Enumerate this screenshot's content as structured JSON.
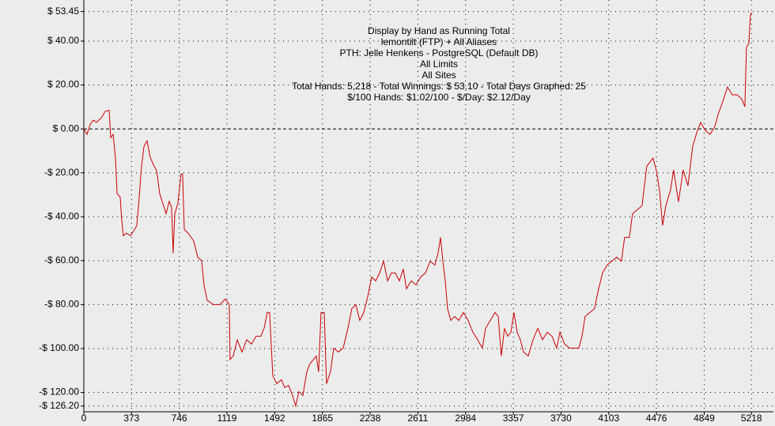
{
  "chart_data": {
    "type": "line",
    "title": "Display by Hand as Running Total",
    "annotations": [
      "lemontilt (FTP) + All Aliases",
      "PTH: Jelle Henkens - PostgreSQL (Default DB)",
      "All Limits",
      "All Sites",
      "Total Hands: 5,218 - Total Winnings: $ 53.10 - Total Days Graphed: 25",
      "$/100 Hands: $1.02/100 - $/Day: $2.12/Day"
    ],
    "xlim": [
      0,
      5390
    ],
    "ylim": [
      -128.8,
      58.7
    ],
    "xticks": [
      0,
      373,
      746,
      1119,
      1492,
      1865,
      2238,
      2611,
      2984,
      3357,
      3730,
      4103,
      4476,
      4849,
      5218
    ],
    "yticks": [
      {
        "value": 53.45,
        "label": "$ 53.45"
      },
      {
        "value": 40,
        "label": "$ 40.00"
      },
      {
        "value": 20,
        "label": "$ 20.00"
      },
      {
        "value": 0,
        "label": "$ 0.00"
      },
      {
        "value": -20,
        "label": "-$ 20.00"
      },
      {
        "value": -40,
        "label": "-$ 40.00"
      },
      {
        "value": -60,
        "label": "-$ 60.00"
      },
      {
        "value": -80,
        "label": "-$ 80.00"
      },
      {
        "value": -100,
        "label": "-$ 100.00"
      },
      {
        "value": -120,
        "label": "-$ 120.00"
      },
      {
        "value": -126.2,
        "label": "-$ 126.20"
      }
    ],
    "grid": true,
    "series": [
      {
        "color": "#cc0000",
        "x": [
          0,
          25,
          49,
          74,
          99,
          136,
          167,
          198,
          210,
          229,
          247,
          260,
          284,
          297,
          309,
          334,
          365,
          396,
          414,
          433,
          451,
          470,
          494,
          519,
          550,
          569,
          593,
          618,
          643,
          667,
          686,
          698,
          711,
          735,
          760,
          772,
          785,
          816,
          859,
          890,
          921,
          939,
          964,
          1014,
          1063,
          1106,
          1137,
          1143,
          1168,
          1199,
          1236,
          1273,
          1310,
          1347,
          1384,
          1409,
          1434,
          1452,
          1477,
          1508,
          1545,
          1570,
          1600,
          1631,
          1656,
          1681,
          1712,
          1743,
          1767,
          1792,
          1817,
          1835,
          1854,
          1879,
          1897,
          1928,
          1953,
          1990,
          2027,
          2064,
          2095,
          2126,
          2157,
          2188,
          2219,
          2250,
          2281,
          2312,
          2343,
          2374,
          2404,
          2435,
          2466,
          2497,
          2522,
          2559,
          2596,
          2633,
          2670,
          2707,
          2744,
          2769,
          2788,
          2806,
          2825,
          2843,
          2868,
          2899,
          2930,
          2967,
          3004,
          3041,
          3078,
          3115,
          3140,
          3177,
          3214,
          3239,
          3263,
          3288,
          3313,
          3338,
          3362,
          3387,
          3412,
          3437,
          3474,
          3511,
          3548,
          3585,
          3622,
          3659,
          3696,
          3721,
          3758,
          3795,
          3832,
          3869,
          3894,
          3918,
          3955,
          3992,
          4017,
          4054,
          4091,
          4128,
          4165,
          4202,
          4227,
          4264,
          4289,
          4326,
          4363,
          4400,
          4425,
          4449,
          4474,
          4499,
          4524,
          4549,
          4586,
          4610,
          4648,
          4685,
          4722,
          4759,
          4796,
          4821,
          4858,
          4895,
          4932,
          4957,
          4994,
          5031,
          5068,
          5105,
          5142,
          5167,
          5179,
          5198,
          5210,
          5218
        ],
        "values": [
          0,
          -2.5,
          2,
          4,
          3,
          5,
          8,
          8.5,
          -4,
          -2.5,
          -13,
          -29.5,
          -31,
          -42,
          -48.6,
          -47.5,
          -48.6,
          -45.8,
          -44,
          -31,
          -17,
          -8,
          -5.4,
          -13,
          -17,
          -19,
          -29.5,
          -34,
          -38.6,
          -33,
          -35.7,
          -56.6,
          -38.6,
          -34,
          -20.5,
          -20.5,
          -45.8,
          -47.5,
          -51,
          -58.4,
          -60,
          -71,
          -78,
          -80,
          -80,
          -77.5,
          -80,
          -105,
          -103.4,
          -96,
          -101.6,
          -96,
          -98,
          -94.4,
          -94.4,
          -90.8,
          -83.6,
          -83.6,
          -112.4,
          -116,
          -114.2,
          -117.8,
          -116.8,
          -121.4,
          -126.1,
          -119.6,
          -121.4,
          -110.6,
          -107,
          -105.2,
          -103.4,
          -110.6,
          -83.6,
          -83.6,
          -116,
          -110.6,
          -99.8,
          -101.6,
          -99.8,
          -90.8,
          -81.8,
          -80,
          -87.2,
          -83.6,
          -76.4,
          -67.4,
          -69.2,
          -65.6,
          -60.2,
          -69.2,
          -65.6,
          -65.6,
          -69.2,
          -63.8,
          -72.8,
          -69.2,
          -71,
          -67.4,
          -65.6,
          -60.2,
          -62,
          -56.6,
          -49.4,
          -60.2,
          -69.2,
          -81.8,
          -87.2,
          -85.4,
          -87.2,
          -83.6,
          -87.2,
          -92.6,
          -96,
          -99.8,
          -90.8,
          -87.2,
          -83.6,
          -85.4,
          -103.4,
          -90.8,
          -94.4,
          -92.6,
          -83.6,
          -92.6,
          -96,
          -101.6,
          -103.4,
          -96,
          -90.8,
          -96,
          -92.6,
          -94.4,
          -99.8,
          -92.6,
          -98,
          -99.8,
          -99.8,
          -99.8,
          -94.4,
          -85.4,
          -83.6,
          -81.8,
          -74.6,
          -65.6,
          -62,
          -60.2,
          -58.4,
          -60.2,
          -49.4,
          -49.4,
          -38.6,
          -36.8,
          -35,
          -17,
          -15.1,
          -13.3,
          -18.7,
          -27.7,
          -44,
          -35,
          -27.7,
          -18.7,
          -33.2,
          -18.7,
          -25.9,
          -7.9,
          -0.7,
          2.9,
          -0.7,
          -2.5,
          1.1,
          6.5,
          12.4,
          19.1,
          15.5,
          15.5,
          13.7,
          10.1,
          37.1,
          38.9,
          51.5,
          53.1
        ]
      }
    ]
  }
}
